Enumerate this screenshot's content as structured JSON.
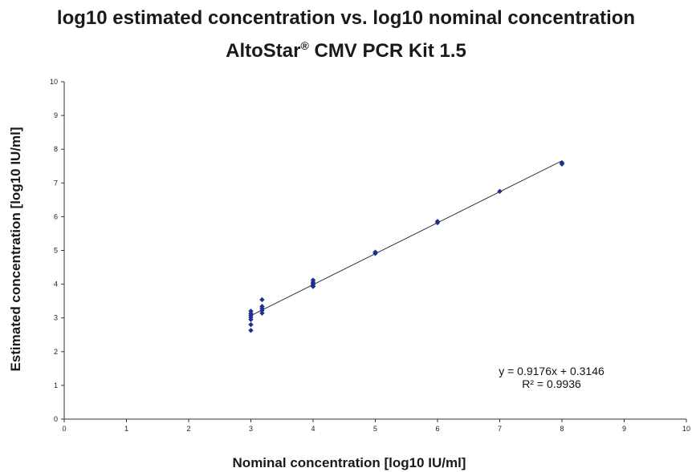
{
  "title": {
    "line1": "log10 estimated concentration vs. log10 nominal concentration",
    "line2_prefix": "AltoStar",
    "line2_mark": "®",
    "line2_suffix": " CMV PCR Kit 1.5"
  },
  "chart_data": {
    "type": "scatter",
    "xlabel": "Nominal concentration [log10 IU/ml]",
    "ylabel": "Estimated concentration [log10 IU/ml]",
    "xlim": [
      0,
      10
    ],
    "ylim": [
      0,
      10
    ],
    "xticks": [
      0,
      1,
      2,
      3,
      4,
      5,
      6,
      7,
      8,
      9,
      10
    ],
    "yticks": [
      0,
      1,
      2,
      3,
      4,
      5,
      6,
      7,
      8,
      9,
      10
    ],
    "grid": false,
    "series": [
      {
        "marker": "diamond",
        "color": "#1f2f8f",
        "points": [
          {
            "x": 3.0,
            "y": 2.63
          },
          {
            "x": 3.0,
            "y": 2.8
          },
          {
            "x": 3.0,
            "y": 2.95
          },
          {
            "x": 3.0,
            "y": 3.02
          },
          {
            "x": 3.0,
            "y": 3.08
          },
          {
            "x": 3.0,
            "y": 3.13
          },
          {
            "x": 3.0,
            "y": 3.2
          },
          {
            "x": 3.18,
            "y": 3.14
          },
          {
            "x": 3.18,
            "y": 3.22
          },
          {
            "x": 3.18,
            "y": 3.28
          },
          {
            "x": 3.18,
            "y": 3.34
          },
          {
            "x": 3.18,
            "y": 3.54
          },
          {
            "x": 4.0,
            "y": 3.93
          },
          {
            "x": 4.0,
            "y": 3.98
          },
          {
            "x": 4.0,
            "y": 4.02
          },
          {
            "x": 4.0,
            "y": 4.06
          },
          {
            "x": 4.0,
            "y": 4.12
          },
          {
            "x": 5.0,
            "y": 4.91
          },
          {
            "x": 5.0,
            "y": 4.95
          },
          {
            "x": 6.0,
            "y": 5.82
          },
          {
            "x": 6.0,
            "y": 5.86
          },
          {
            "x": 7.0,
            "y": 6.75
          },
          {
            "x": 8.0,
            "y": 7.56
          },
          {
            "x": 8.0,
            "y": 7.6
          }
        ]
      }
    ],
    "trendline": {
      "slope": 0.9176,
      "intercept": 0.3146,
      "x_range": [
        3,
        8
      ],
      "color": "#333333"
    },
    "annotations": {
      "equation": "y = 0.9176x + 0.3146",
      "r_squared": "R² = 0.9936"
    }
  }
}
